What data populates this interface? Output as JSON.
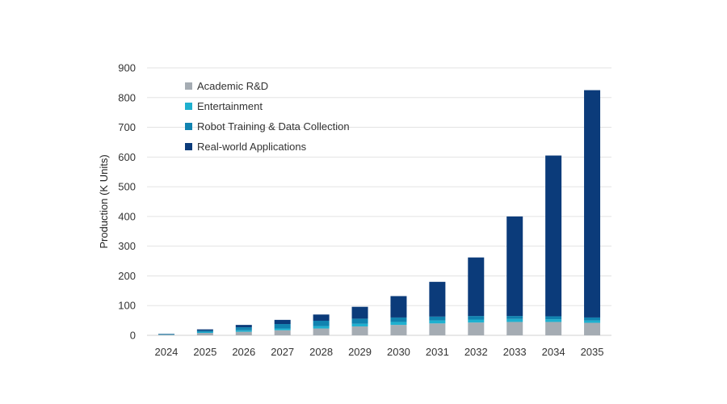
{
  "chart_data": {
    "type": "bar",
    "stacked": true,
    "title": "",
    "xlabel": "",
    "ylabel": "Production (K Units)",
    "ylim": [
      0,
      900
    ],
    "yticks": [
      0,
      100,
      200,
      300,
      400,
      500,
      600,
      700,
      800,
      900
    ],
    "grid": true,
    "legend_position": "top-left",
    "categories": [
      "2024",
      "2025",
      "2026",
      "2027",
      "2028",
      "2029",
      "2030",
      "2031",
      "2032",
      "2033",
      "2034",
      "2035"
    ],
    "series": [
      {
        "name": "Academic R&D",
        "color": "#a5acb3",
        "values": [
          2,
          8,
          12,
          17,
          23,
          30,
          35,
          40,
          43,
          45,
          45,
          42
        ]
      },
      {
        "name": "Entertainment",
        "color": "#1fb0cf",
        "values": [
          1,
          3,
          5,
          6,
          8,
          9,
          10,
          10,
          10,
          10,
          9,
          8
        ]
      },
      {
        "name": "Robot Training & Data Collection",
        "color": "#1183b0",
        "values": [
          1,
          5,
          10,
          15,
          18,
          17,
          15,
          13,
          12,
          10,
          10,
          10
        ]
      },
      {
        "name": "Real-world Applications",
        "color": "#0b3b7a",
        "values": [
          1,
          4,
          8,
          14,
          21,
          40,
          72,
          117,
          197,
          335,
          541,
          765
        ]
      }
    ]
  }
}
